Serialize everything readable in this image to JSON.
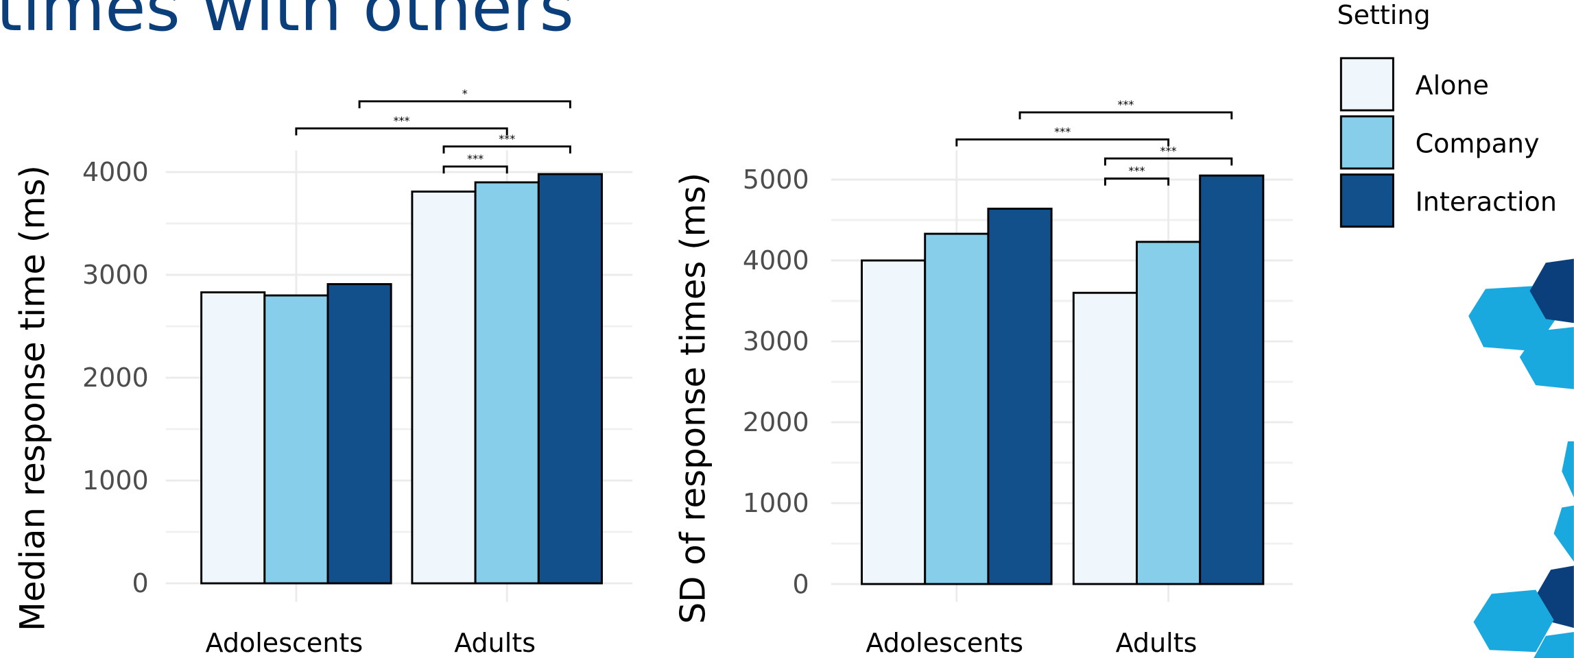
{
  "title": "times with others",
  "legend_title": "Setting",
  "chart_data": [
    {
      "type": "bar",
      "ylabel": "Median response time (ms)",
      "categories": [
        "Adolescents",
        "Adults"
      ],
      "series": [
        {
          "name": "Alone",
          "color": "#eff6fc",
          "values": [
            2830,
            3810
          ]
        },
        {
          "name": "Company",
          "color": "#87ceeb",
          "values": [
            2800,
            3900
          ]
        },
        {
          "name": "Interaction",
          "color": "#12508c",
          "values": [
            2910,
            3980
          ]
        }
      ],
      "ylim": [
        -180,
        4210
      ],
      "yticks": [
        0,
        1000,
        2000,
        3000,
        4000
      ],
      "grid": true,
      "annotations": [
        "*",
        "***",
        "***",
        "***"
      ]
    },
    {
      "type": "bar",
      "ylabel": "SD of response times (ms)",
      "categories": [
        "Adolescents",
        "Adults"
      ],
      "series": [
        {
          "name": "Alone",
          "color": "#eff6fc",
          "values": [
            4000,
            3600
          ]
        },
        {
          "name": "Company",
          "color": "#87ceeb",
          "values": [
            4330,
            4230
          ]
        },
        {
          "name": "Interaction",
          "color": "#12508c",
          "values": [
            4640,
            5050
          ]
        }
      ],
      "ylim": [
        -220,
        5360
      ],
      "yticks": [
        0,
        1000,
        2000,
        3000,
        4000,
        5000
      ],
      "grid": true,
      "annotations": [
        "***",
        "***",
        "***",
        "***"
      ]
    }
  ]
}
